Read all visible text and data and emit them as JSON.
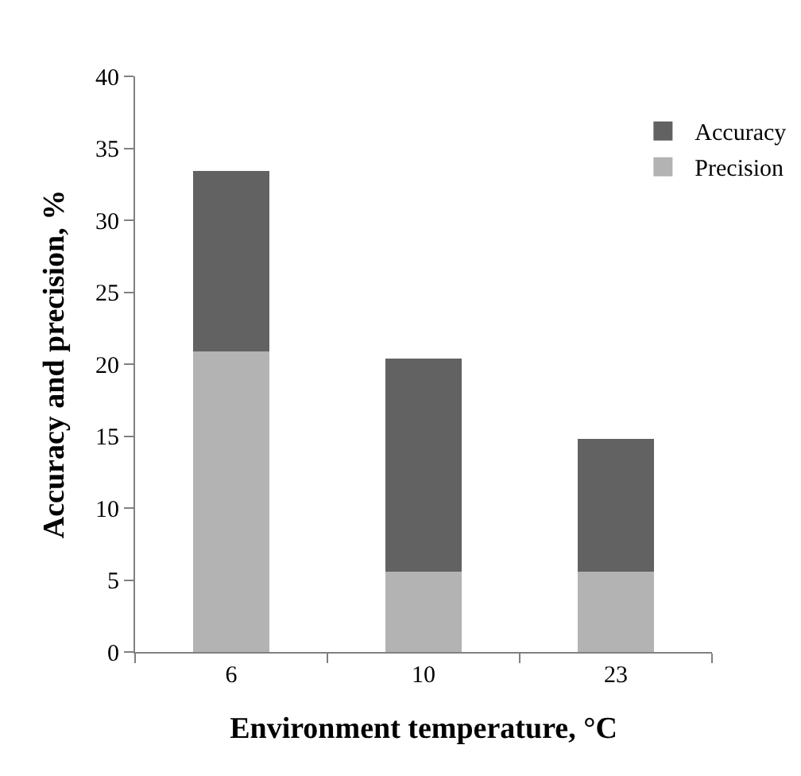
{
  "chart_data": {
    "type": "bar",
    "stacked": true,
    "xlabel": "Environment temperature, °C",
    "ylabel": "Accuracy and precision, %",
    "categories": [
      "6",
      "10",
      "23"
    ],
    "series": [
      {
        "name": "Precision",
        "color": "#b3b3b3",
        "values": [
          20.9,
          5.6,
          5.6
        ]
      },
      {
        "name": "Accuracy",
        "color": "#626262",
        "values": [
          12.5,
          14.8,
          9.2
        ]
      }
    ],
    "ylim": [
      0,
      40
    ],
    "yticks": [
      0,
      5,
      10,
      15,
      20,
      25,
      30,
      35,
      40
    ],
    "grid": false,
    "legend": "top right"
  }
}
